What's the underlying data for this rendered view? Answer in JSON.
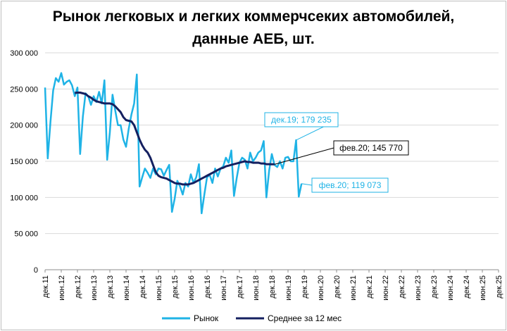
{
  "chart_data": {
    "type": "line",
    "title_line1": "Рынок легковых и легких коммерчсеких автомобилей,",
    "title_line2": "данные АЕБ, шт.",
    "ylim": [
      0,
      300000
    ],
    "yticks": [
      0,
      50000,
      100000,
      150000,
      200000,
      250000,
      300000
    ],
    "ytick_labels": [
      "0",
      "50 000",
      "100 000",
      "150 000",
      "200 000",
      "250 000",
      "300 000"
    ],
    "xtick_labels": [
      "дек.11",
      "июн.12",
      "дек.12",
      "июн.13",
      "дек.13",
      "июн.14",
      "дек.14",
      "июн.15",
      "дек.15",
      "июн.16",
      "дек.16",
      "июн.17",
      "дек.17",
      "июн.18",
      "дек.18",
      "июн.19",
      "дек.19",
      "июн.20",
      "дек.20",
      "июн.21",
      "дек.21",
      "июн.22",
      "дек.22",
      "июн.23",
      "дек.23",
      "июн.24",
      "дек.24",
      "июн.25",
      "дек.25"
    ],
    "x_index_range": [
      0,
      168
    ],
    "legend_position": "bottom",
    "colors": {
      "market": "#1fb3e6",
      "average": "#142060"
    },
    "series": [
      {
        "name": "Рынок",
        "start_index": 0,
        "values": [
          252000,
          154000,
          205000,
          248000,
          265000,
          260000,
          272000,
          256000,
          260000,
          262000,
          255000,
          240000,
          252000,
          160000,
          212000,
          244000,
          240000,
          228000,
          240000,
          232000,
          246000,
          230000,
          262000,
          152000,
          190000,
          242000,
          220000,
          200000,
          200000,
          180000,
          170000,
          195000,
          215000,
          230000,
          270000,
          115000,
          128000,
          140000,
          134000,
          127000,
          140000,
          132000,
          140000,
          139000,
          130000,
          138000,
          145000,
          80000,
          98000,
          123000,
          115000,
          104000,
          120000,
          115000,
          132000,
          120000,
          128000,
          146000,
          78000,
          104000,
          128000,
          131000,
          120000,
          140000,
          129000,
          140000,
          143000,
          155000,
          148000,
          165000,
          102000,
          127000,
          148000,
          155000,
          152000,
          140000,
          162000,
          150000,
          155000,
          162000,
          165000,
          178000,
          100000,
          137000,
          160000,
          145000,
          142000,
          150000,
          140000,
          155000,
          156000,
          150000,
          150000,
          179235,
          101000,
          119073
        ]
      },
      {
        "name": "Среднее за 12 мес",
        "start_index": 11,
        "values": [
          244500,
          245000,
          245000,
          244000,
          243000,
          240000,
          238000,
          235000,
          233000,
          232000,
          231000,
          230000,
          230000,
          230000,
          229000,
          226000,
          222000,
          218000,
          211000,
          207000,
          206000,
          205000,
          200000,
          190000,
          180000,
          172000,
          166000,
          162000,
          155000,
          145000,
          135000,
          130000,
          128000,
          127000,
          126000,
          124000,
          122000,
          120000,
          119000,
          119000,
          118000,
          118000,
          118000,
          119000,
          120000,
          122000,
          124000,
          126000,
          128000,
          130000,
          132000,
          134000,
          136000,
          138000,
          140000,
          141000,
          143000,
          144000,
          145000,
          146000,
          147000,
          148000,
          149000,
          150000,
          149000,
          149000,
          148000,
          148000,
          148000,
          147000,
          147000,
          146000,
          146000,
          145770,
          145770
        ]
      }
    ],
    "annotations": [
      {
        "text": "дек.19; 179 235",
        "series": "Рынок",
        "color": "#1fb3e6"
      },
      {
        "text": "фев.20; 145 770",
        "series": "Среднее за 12 мес",
        "color": "#000000"
      },
      {
        "text": "фев.20; 119 073",
        "series": "Рынок",
        "color": "#1fb3e6"
      }
    ]
  }
}
